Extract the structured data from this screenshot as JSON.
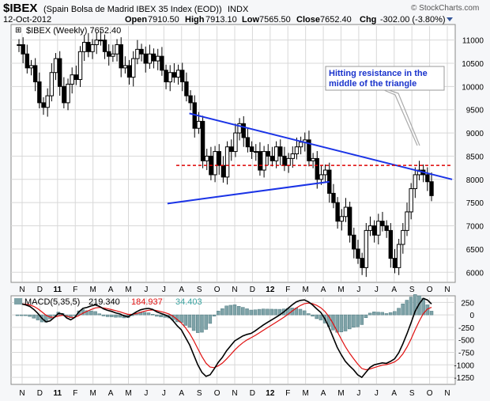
{
  "header": {
    "symbol": "$IBEX",
    "description": "(Spain Bolsa de Madrid IBEX 35 Index (EOD))",
    "exchange": "INDX",
    "date": "12-Oct-2012",
    "open_label": "Open",
    "open": "7910.50",
    "high_label": "High",
    "high": "7913.10",
    "low_label": "Low",
    "low": "7565.50",
    "close_label": "Close",
    "close": "7652.40",
    "chg_label": "Chg",
    "chg": "-302.00 (-3.80%)",
    "watermark": "© StockCharts.com"
  },
  "price_legend": "$IBEX (Weekly) 7652.40",
  "annotation": {
    "line1": "Hitting resistance in the",
    "line2": "middle of the triangle"
  },
  "macd_legend": {
    "label": "MACD(5,35,5)",
    "macd": "219.340",
    "signal": "184.937",
    "hist": "34.403"
  },
  "colors": {
    "price_bar": "#000000",
    "trendline": "#1a33e6",
    "resistance": "#dd0000",
    "macd_line": "#000000",
    "signal_line": "#e01010",
    "histogram": "#7fa3a8",
    "annotation": "#1a33cc"
  },
  "chart_data": [
    {
      "type": "candlestick",
      "title": "$IBEX (Weekly)",
      "x_ticks": [
        "N",
        "D",
        "11",
        "F",
        "M",
        "A",
        "M",
        "J",
        "J",
        "A",
        "S",
        "O",
        "N",
        "D",
        "12",
        "F",
        "M",
        "A",
        "M",
        "J",
        "J",
        "A",
        "S",
        "O",
        "N"
      ],
      "ylim": [
        5800,
        11300
      ],
      "y_ticks": [
        6000,
        6500,
        7000,
        7500,
        8000,
        8500,
        9000,
        9500,
        10000,
        10500,
        11000
      ],
      "resistance_level": 8300,
      "upper_trendline": {
        "from": [
          0.4,
          9420
        ],
        "to": [
          1.0,
          8000
        ]
      },
      "lower_trendline": {
        "from": [
          0.35,
          7480
        ],
        "to": [
          0.72,
          7950
        ]
      },
      "closes": [
        10900,
        10700,
        10400,
        10450,
        10100,
        9650,
        9550,
        9800,
        10300,
        10600,
        10000,
        9650,
        10050,
        10250,
        10150,
        10750,
        10950,
        10750,
        10900,
        11000,
        11000,
        10750,
        10650,
        10700,
        10900,
        10400,
        10450,
        10200,
        10600,
        10800,
        10700,
        10500,
        10700,
        10550,
        10650,
        10350,
        10100,
        10300,
        10200,
        10350,
        10100,
        9800,
        9650,
        9100,
        9250,
        8400,
        8500,
        8100,
        8600,
        8300,
        8050,
        8700,
        8600,
        9000,
        9200,
        8900,
        8700,
        8600,
        8600,
        8200,
        8600,
        8500,
        8400,
        8700,
        8500,
        8300,
        8450,
        8550,
        8700,
        8800,
        8850,
        8400,
        8450,
        8000,
        8100,
        8200,
        7700,
        7500,
        7100,
        7200,
        7400,
        6800,
        6500,
        6300,
        6100,
        6900,
        7000,
        6800,
        7100,
        7000,
        6900,
        6300,
        6100,
        6600,
        6900,
        7300,
        7800,
        8100,
        8200,
        8100,
        7950,
        7650
      ]
    },
    {
      "type": "line",
      "title": "MACD(5,35,5)",
      "ylim": [
        -1375,
        350
      ],
      "y_ticks": [
        250,
        0,
        -250,
        -500,
        -750,
        -1000,
        -1250
      ],
      "macd": [
        220,
        220,
        200,
        170,
        110,
        30,
        -70,
        -140,
        -120,
        -50,
        30,
        20,
        -60,
        -100,
        -50,
        60,
        130,
        150,
        180,
        200,
        170,
        120,
        90,
        70,
        40,
        20,
        -20,
        -40,
        10,
        60,
        100,
        120,
        130,
        110,
        60,
        30,
        0,
        -40,
        -120,
        -220,
        -300,
        -450,
        -600,
        -800,
        -1000,
        -1150,
        -1230,
        -1200,
        -1080,
        -950,
        -850,
        -720,
        -620,
        -520,
        -470,
        -420,
        -390,
        -370,
        -320,
        -260,
        -200,
        -150,
        -100,
        -50,
        0,
        60,
        130,
        200,
        260,
        290,
        300,
        260,
        200,
        120,
        50,
        -80,
        -250,
        -450,
        -650,
        -800,
        -930,
        -1020,
        -1100,
        -1200,
        -1250,
        -1150,
        -1050,
        -1000,
        -980,
        -960,
        -970,
        -930,
        -880,
        -760,
        -580,
        -380,
        -160,
        70,
        220,
        330,
        300,
        219
      ]
    }
  ]
}
